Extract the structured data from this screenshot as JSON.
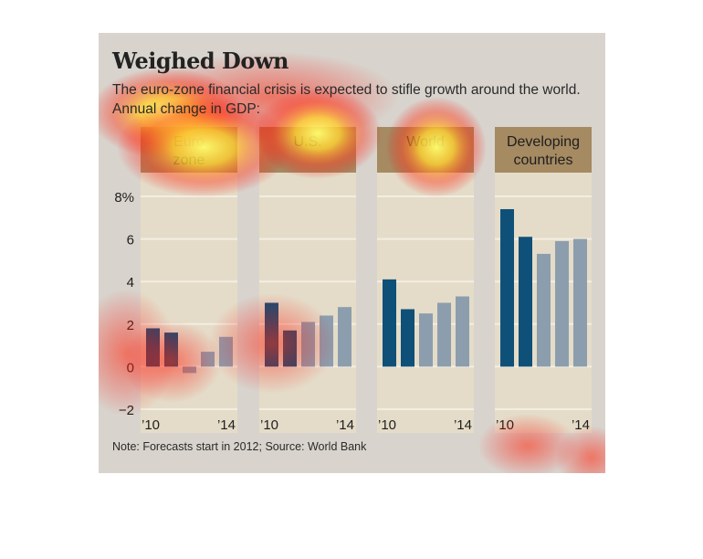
{
  "chart_data": {
    "type": "bar",
    "title": "Weighed Down",
    "subtitle": "The euro-zone financial crisis is expected to stifle growth around the world. Annual change in GDP:",
    "note": "Note: Forecasts start in 2012; Source: World Bank",
    "ylim": [
      -2,
      8
    ],
    "yticks": [
      {
        "value": 8,
        "label": "8%"
      },
      {
        "value": 6,
        "label": "6"
      },
      {
        "value": 4,
        "label": "4"
      },
      {
        "value": 2,
        "label": "2"
      },
      {
        "value": 0,
        "label": "0"
      },
      {
        "value": -2,
        "label": "−2"
      }
    ],
    "x_tick_labels": [
      "’10",
      "’14"
    ],
    "categories": [
      "2010",
      "2011",
      "2012",
      "2013",
      "2014"
    ],
    "forecast_start_index": 2,
    "colors": {
      "actual": "#0f5079",
      "forecast": "#8c9eae",
      "panel": "#e4dcc8",
      "header": "#a58a62",
      "background": "#d8d4cd"
    },
    "grid": true,
    "panels": [
      {
        "label": "Euro zone",
        "values": [
          1.8,
          1.6,
          -0.3,
          0.7,
          1.4
        ]
      },
      {
        "label": "U.S.",
        "values": [
          3.0,
          1.7,
          2.1,
          2.4,
          2.8
        ]
      },
      {
        "label": "World",
        "values": [
          4.1,
          2.7,
          2.5,
          3.0,
          3.3
        ]
      },
      {
        "label": "Developing countries",
        "values": [
          7.4,
          6.1,
          5.3,
          5.9,
          6.0
        ]
      }
    ]
  }
}
